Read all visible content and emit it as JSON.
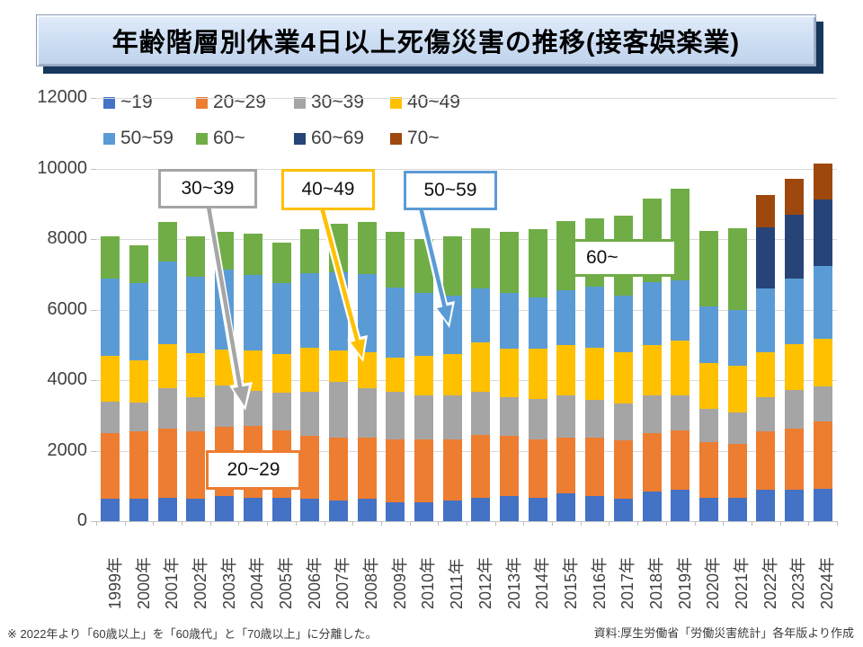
{
  "title": {
    "text": "年齢階層別休業4日以上死傷災害の推移(接客娯楽業)"
  },
  "footnotes": {
    "note": "※ 2022年より「60歳以上」を「60歳代」と「70歳以上」に分離した。",
    "source": "資料:厚生労働省「労働災害統計」各年版より作成"
  },
  "annotations": {
    "a30": {
      "text": "30~39",
      "color": "#A5A5A5"
    },
    "a40": {
      "text": "40~49",
      "color": "#FFC000"
    },
    "a50": {
      "text": "50~59",
      "color": "#5B9BD5"
    },
    "a60": {
      "text": "60~",
      "color": "#70AD47"
    },
    "a20": {
      "text": "20~29",
      "color": "#ED7D31"
    }
  },
  "chart_data": {
    "type": "bar",
    "subtype": "stacked",
    "title": "年齢階層別休業4日以上死傷災害の推移(接客娯楽業)",
    "xlabel": "",
    "ylabel": "",
    "ylim": [
      0,
      12000
    ],
    "ytick_step": 2000,
    "grid": true,
    "legend_position": "top-left",
    "categories": [
      "1999年",
      "2000年",
      "2001年",
      "2002年",
      "2003年",
      "2004年",
      "2005年",
      "2006年",
      "2007年",
      "2008年",
      "2009年",
      "2010年",
      "2011年",
      "2012年",
      "2013年",
      "2014年",
      "2015年",
      "2016年",
      "2017年",
      "2018年",
      "2019年",
      "2020年",
      "2021年",
      "2022年",
      "2023年",
      "2024年"
    ],
    "series": [
      {
        "name": "~19",
        "color": "#4472C4",
        "values": [
          630,
          630,
          660,
          635,
          710,
          660,
          660,
          635,
          585,
          635,
          535,
          535,
          585,
          660,
          710,
          660,
          790,
          710,
          635,
          840,
          890,
          660,
          660,
          890,
          890,
          915
        ]
      },
      {
        "name": "20~29",
        "color": "#ED7D31",
        "values": [
          1860,
          1910,
          1955,
          1905,
          1960,
          2035,
          1910,
          1780,
          1780,
          1730,
          1780,
          1780,
          1730,
          1780,
          1705,
          1655,
          1575,
          1655,
          1655,
          1650,
          1680,
          1575,
          1525,
          1650,
          1730,
          1905
        ]
      },
      {
        "name": "30~39",
        "color": "#A5A5A5",
        "values": [
          890,
          815,
          1145,
          970,
          1170,
          995,
          1065,
          1265,
          1575,
          1395,
          1365,
          1240,
          1240,
          1240,
          1090,
          1140,
          1190,
          1065,
          1040,
          1065,
          1010,
          940,
          890,
          965,
          1090,
          995
        ]
      },
      {
        "name": "40~49",
        "color": "#FFC000",
        "values": [
          1320,
          1215,
          1270,
          1265,
          1020,
          1140,
          1095,
          1250,
          890,
          1020,
          970,
          1145,
          1175,
          1380,
          1375,
          1425,
          1430,
          1475,
          1450,
          1430,
          1530,
          1300,
          1345,
          1275,
          1300,
          1370
        ]
      },
      {
        "name": "50~59",
        "color": "#5B9BD5",
        "values": [
          2190,
          2190,
          2340,
          2165,
          2285,
          2160,
          2030,
          2110,
          2235,
          2235,
          1985,
          1780,
          1655,
          1540,
          1600,
          1475,
          1575,
          1755,
          1605,
          1805,
          1730,
          1625,
          1580,
          1820,
          1880,
          2060
        ]
      },
      {
        "name": "60~",
        "color": "#70AD47",
        "values": [
          1190,
          1070,
          1110,
          1140,
          1065,
          1170,
          1150,
          1240,
          1375,
          1465,
          1575,
          1520,
          1695,
          1710,
          1730,
          1925,
          1955,
          1930,
          2285,
          2365,
          2590,
          2135,
          2310,
          0,
          0,
          0
        ]
      },
      {
        "name": "60~69",
        "color": "#264478",
        "values": [
          0,
          0,
          0,
          0,
          0,
          0,
          0,
          0,
          0,
          0,
          0,
          0,
          0,
          0,
          0,
          0,
          0,
          0,
          0,
          0,
          0,
          0,
          0,
          1740,
          1805,
          1880
        ]
      },
      {
        "name": "70~",
        "color": "#9E480E",
        "values": [
          0,
          0,
          0,
          0,
          0,
          0,
          0,
          0,
          0,
          0,
          0,
          0,
          0,
          0,
          0,
          0,
          0,
          0,
          0,
          0,
          0,
          0,
          0,
          910,
          1005,
          1025
        ]
      }
    ]
  }
}
